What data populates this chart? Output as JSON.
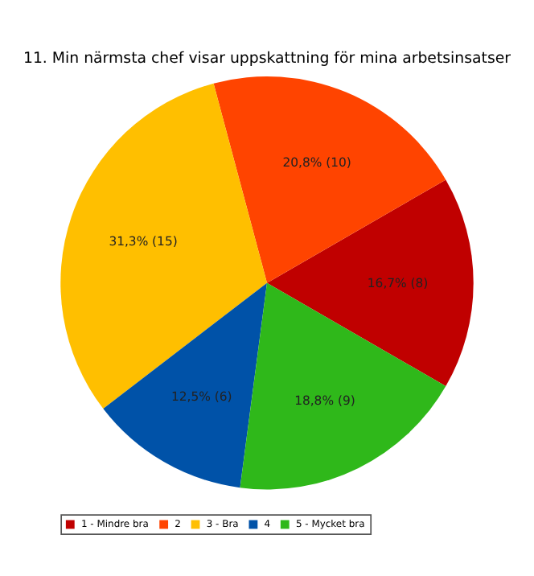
{
  "chart_data": {
    "type": "pie",
    "title": "11. Min närmsta chef visar uppskattning för mina arbetsinsatser",
    "categories": [
      "1 - Mindre bra",
      "2",
      "3 - Bra",
      "4",
      "5 - Mycket bra"
    ],
    "values": [
      8,
      10,
      15,
      6,
      9
    ],
    "colors": [
      "#c00000",
      "#ff4400",
      "#ffbf00",
      "#0052a8",
      "#2fb81a"
    ],
    "value_labels": [
      "16,7% (8)",
      "20,8% (10)",
      "31,3% (15)",
      "12,5% (6)",
      "18,8% (9)"
    ],
    "legend": "bottom"
  }
}
